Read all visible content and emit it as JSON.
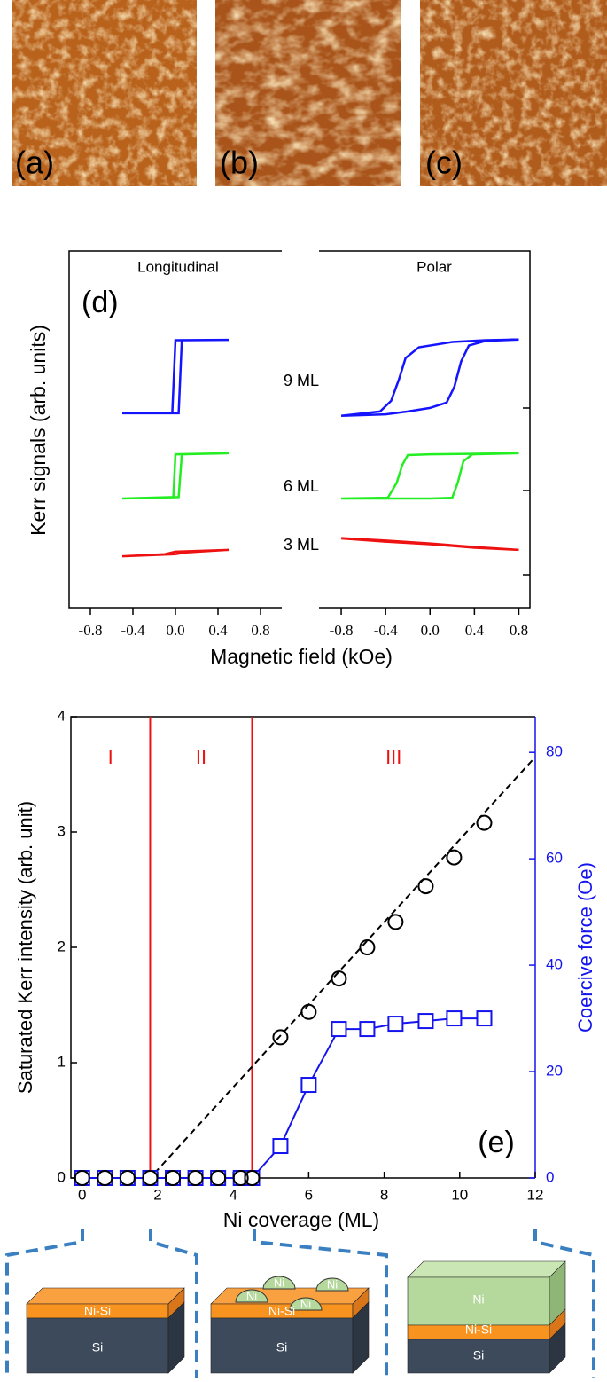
{
  "images": [
    {
      "label": "(a)"
    },
    {
      "label": "(b)"
    },
    {
      "label": "(c)"
    }
  ],
  "chart_data": [
    {
      "type": "loops",
      "label": "(d)",
      "ylabel": "Kerr signals (arb. units)",
      "xlabel": "Magnetic field (kOe)",
      "ylim": [
        0,
        10
      ],
      "curve_labels": [
        "9 ML",
        "6 ML",
        "3 ML"
      ],
      "panels": [
        {
          "title": "Longitudinal",
          "xlim": [
            -1,
            1
          ],
          "xticks": [
            -0.8,
            -0.4,
            {
              "value": 0,
              "label": "0.0"
            },
            0.4,
            0.8
          ],
          "series": [
            {
              "color": "#1414ff",
              "x": [
                -0.5,
                0.03,
                0.06,
                0.5,
                0.5,
                0.0,
                -0.03,
                -0.5
              ],
              "values": [
                5.45,
                5.45,
                7.5,
                7.51,
                7.51,
                7.5,
                5.45,
                5.45
              ]
            },
            {
              "color": "#22ee22",
              "x": [
                -0.5,
                0.03,
                0.06,
                0.5,
                0.5,
                0.0,
                -0.02,
                -0.5
              ],
              "values": [
                3.06,
                3.1,
                4.3,
                4.33,
                4.33,
                4.3,
                3.1,
                3.06
              ]
            },
            {
              "color": "#ee1111",
              "x": [
                -0.5,
                0.0,
                0.1,
                0.5,
                0.5,
                0.0,
                -0.1,
                -0.5
              ],
              "values": [
                1.44,
                1.5,
                1.55,
                1.62,
                1.62,
                1.57,
                1.5,
                1.44
              ]
            }
          ]
        },
        {
          "title": "Polar",
          "xlim": [
            -1,
            0.9
          ],
          "xticks": [
            -0.8,
            -0.4,
            {
              "value": 0,
              "label": "0.0"
            },
            0.4,
            0.8
          ],
          "series": [
            {
              "color": "#1414ff",
              "x": [
                -0.8,
                -0.4,
                -0.2,
                0.0,
                0.15,
                0.22,
                0.28,
                0.35,
                0.5,
                0.8,
                0.8,
                0.5,
                0.2,
                -0.1,
                -0.22,
                -0.28,
                -0.35,
                -0.45,
                -0.8
              ],
              "values": [
                5.38,
                5.42,
                5.5,
                5.6,
                5.75,
                6.2,
                6.9,
                7.35,
                7.48,
                7.52,
                7.52,
                7.5,
                7.45,
                7.3,
                7.0,
                6.4,
                5.8,
                5.5,
                5.38
              ]
            },
            {
              "color": "#22ee22",
              "x": [
                -0.8,
                0.0,
                0.2,
                0.25,
                0.3,
                0.38,
                0.8,
                0.8,
                0.0,
                -0.2,
                -0.25,
                -0.3,
                -0.38,
                -0.8
              ],
              "values": [
                3.06,
                3.06,
                3.08,
                3.5,
                4.1,
                4.3,
                4.33,
                4.33,
                4.3,
                4.28,
                4.0,
                3.5,
                3.08,
                3.06
              ]
            },
            {
              "color": "#ee1111",
              "x": [
                -0.8,
                -0.4,
                0,
                0.4,
                0.8,
                0.8,
                0.4,
                0,
                -0.4,
                -0.8
              ],
              "values": [
                1.95,
                1.88,
                1.8,
                1.7,
                1.62,
                1.62,
                1.68,
                1.78,
                1.85,
                1.94
              ]
            }
          ]
        }
      ]
    },
    {
      "type": "dual",
      "label": "(e)",
      "xlabel": "Ni coverage (ML)",
      "ylabel": "Saturated Kerr intensity (arb. unit)",
      "y2label": "Coercive force (Oe)",
      "xlim": [
        -0.3,
        12
      ],
      "xticks": [
        0,
        2,
        4,
        6,
        8,
        10,
        12
      ],
      "ylim": [
        0,
        4
      ],
      "yticks": [
        0,
        1,
        2,
        3,
        4
      ],
      "y2lim": [
        0,
        86.7
      ],
      "y2ticks": [
        0,
        20,
        40,
        60,
        80
      ],
      "regions": {
        "labels": [
          "I",
          "II",
          "III"
        ],
        "boundaries": [
          1.8,
          4.5
        ],
        "color": "#ee1111"
      },
      "x": [
        0,
        0.6,
        1.2,
        1.8,
        2.4,
        3.0,
        3.6,
        4.2,
        4.5,
        5.25,
        6.0,
        6.8,
        7.55,
        8.3,
        9.1,
        9.85,
        10.65
      ],
      "series": [
        {
          "color": "#000000",
          "marker": "circle",
          "values": [
            0,
            0,
            0,
            0,
            0,
            0,
            0,
            0,
            0,
            1.22,
            1.44,
            1.73,
            2.0,
            2.22,
            2.53,
            2.78,
            3.08
          ]
        },
        {
          "color": "#1414ee",
          "marker": "square",
          "axis": "y2",
          "values": [
            0,
            0,
            0,
            0,
            0,
            0,
            0,
            0,
            0,
            6,
            17.5,
            28,
            28,
            29,
            29.5,
            30,
            30
          ]
        }
      ],
      "fit": {
        "x": [
          0,
          1.8,
          12
        ],
        "values": [
          0,
          0,
          3.65
        ]
      }
    }
  ],
  "diagrams": [
    {
      "layers": [
        "Ni-Si",
        "Si"
      ]
    },
    {
      "layers": [
        "Ni-Si",
        "Si"
      ],
      "islands": [
        "Ni",
        "Ni",
        "Ni",
        "Ni"
      ]
    },
    {
      "layers": [
        "Ni",
        "Ni-Si",
        "Si"
      ]
    }
  ]
}
